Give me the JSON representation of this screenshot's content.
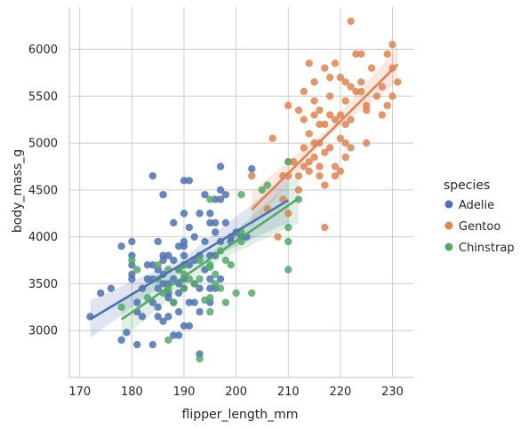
{
  "chart_data": {
    "type": "scatter",
    "xlabel": "flipper_length_mm",
    "ylabel": "body_mass_g",
    "xlim": [
      168,
      234
    ],
    "ylim": [
      2500,
      6450
    ],
    "xticks": [
      170,
      180,
      190,
      200,
      210,
      220,
      230
    ],
    "yticks": [
      3000,
      3500,
      4000,
      4500,
      5000,
      5500,
      6000
    ],
    "grid": true,
    "legend": {
      "title": "species",
      "placement": "right"
    },
    "series": [
      {
        "name": "Adelie",
        "color": "#4c72b0",
        "regression": {
          "x": [
            172,
            210
          ],
          "y": [
            3120,
            4390
          ],
          "ci": [
            [
              172,
              2920,
              3320
            ],
            [
              190,
              3650,
              3780
            ],
            [
              210,
              4150,
              4650
            ]
          ]
        },
        "points": [
          [
            172,
            3150
          ],
          [
            174,
            3400
          ],
          [
            176,
            3450
          ],
          [
            178,
            2900
          ],
          [
            178,
            3900
          ],
          [
            179,
            2980
          ],
          [
            180,
            3550
          ],
          [
            180,
            3950
          ],
          [
            180,
            3800
          ],
          [
            180,
            3700
          ],
          [
            180,
            3600
          ],
          [
            181,
            2850
          ],
          [
            181,
            3300
          ],
          [
            181,
            3200
          ],
          [
            182,
            3150
          ],
          [
            182,
            3450
          ],
          [
            183,
            3550
          ],
          [
            183,
            3700
          ],
          [
            184,
            2850
          ],
          [
            184,
            3550
          ],
          [
            184,
            3300
          ],
          [
            184,
            3700
          ],
          [
            185,
            3450
          ],
          [
            185,
            3950
          ],
          [
            185,
            3250
          ],
          [
            185,
            3150
          ],
          [
            185,
            3650
          ],
          [
            186,
            3750
          ],
          [
            186,
            3500
          ],
          [
            186,
            3100
          ],
          [
            186,
            4450
          ],
          [
            186,
            3800
          ],
          [
            187,
            3800
          ],
          [
            187,
            3350
          ],
          [
            187,
            3500
          ],
          [
            187,
            3400
          ],
          [
            187,
            3150
          ],
          [
            188,
            3300
          ],
          [
            188,
            3550
          ],
          [
            188,
            3750
          ],
          [
            188,
            2950
          ],
          [
            188,
            4150
          ],
          [
            189,
            3900
          ],
          [
            189,
            3500
          ],
          [
            189,
            3400
          ],
          [
            189,
            3200
          ],
          [
            189,
            2950
          ],
          [
            189,
            3650
          ],
          [
            190,
            4250
          ],
          [
            190,
            3900
          ],
          [
            190,
            3950
          ],
          [
            190,
            3700
          ],
          [
            190,
            3550
          ],
          [
            190,
            3050
          ],
          [
            190,
            3450
          ],
          [
            190,
            3800
          ],
          [
            190,
            4600
          ],
          [
            191,
            3050
          ],
          [
            191,
            3300
          ],
          [
            191,
            3700
          ],
          [
            191,
            4600
          ],
          [
            192,
            3500
          ],
          [
            192,
            3300
          ],
          [
            192,
            4000
          ],
          [
            192,
            3750
          ],
          [
            193,
            3800
          ],
          [
            193,
            3450
          ],
          [
            193,
            2750
          ],
          [
            193,
            3200
          ],
          [
            193,
            4250
          ],
          [
            194,
            3650
          ],
          [
            194,
            4450
          ],
          [
            194,
            3950
          ],
          [
            195,
            3800
          ],
          [
            195,
            3550
          ],
          [
            195,
            3300
          ],
          [
            195,
            4150
          ],
          [
            195,
            4250
          ],
          [
            195,
            3450
          ],
          [
            196,
            4400
          ],
          [
            196,
            3800
          ],
          [
            196,
            4050
          ],
          [
            196,
            3450
          ],
          [
            196,
            4150
          ],
          [
            197,
            4400
          ],
          [
            197,
            3950
          ],
          [
            197,
            3550
          ],
          [
            197,
            4750
          ],
          [
            197,
            4500
          ],
          [
            198,
            4150
          ],
          [
            198,
            4450
          ],
          [
            199,
            3950
          ],
          [
            199,
            4000
          ],
          [
            200,
            4050
          ],
          [
            201,
            4000
          ],
          [
            202,
            4000
          ],
          [
            203,
            4725
          ],
          [
            184,
            4650
          ],
          [
            186,
            3600
          ],
          [
            191,
            4100
          ]
        ]
      },
      {
        "name": "Gentoo",
        "color": "#dd8452",
        "regression": {
          "x": [
            203,
            231
          ],
          "y": [
            4290,
            5840
          ],
          "ci": [
            [
              203,
              4100,
              4480
            ],
            [
              217,
              5050,
              5130
            ],
            [
              231,
              5650,
              6030
            ]
          ]
        },
        "points": [
          [
            203,
            4650
          ],
          [
            206,
            4300
          ],
          [
            207,
            5050
          ],
          [
            208,
            4000
          ],
          [
            209,
            4400
          ],
          [
            209,
            4650
          ],
          [
            210,
            4800
          ],
          [
            210,
            5400
          ],
          [
            210,
            4650
          ],
          [
            210,
            4250
          ],
          [
            211,
            4800
          ],
          [
            212,
            5350
          ],
          [
            212,
            4650
          ],
          [
            212,
            4500
          ],
          [
            213,
            5550
          ],
          [
            213,
            4750
          ],
          [
            213,
            4950
          ],
          [
            213,
            5250
          ],
          [
            214,
            4800
          ],
          [
            214,
            4700
          ],
          [
            214,
            5850
          ],
          [
            214,
            5100
          ],
          [
            215,
            5000
          ],
          [
            215,
            4850
          ],
          [
            215,
            5450
          ],
          [
            215,
            5650
          ],
          [
            215,
            5300
          ],
          [
            216,
            5000
          ],
          [
            216,
            4750
          ],
          [
            216,
            5200
          ],
          [
            216,
            4650
          ],
          [
            216,
            5350
          ],
          [
            217,
            4900
          ],
          [
            217,
            5200
          ],
          [
            217,
            4550
          ],
          [
            217,
            5800
          ],
          [
            217,
            4100
          ],
          [
            218,
            5500
          ],
          [
            218,
            4950
          ],
          [
            218,
            5300
          ],
          [
            218,
            5700
          ],
          [
            219,
            4750
          ],
          [
            219,
            5850
          ],
          [
            219,
            5250
          ],
          [
            219,
            4650
          ],
          [
            220,
            5300
          ],
          [
            220,
            5700
          ],
          [
            220,
            4700
          ],
          [
            220,
            5050
          ],
          [
            221,
            5650
          ],
          [
            221,
            5200
          ],
          [
            221,
            5000
          ],
          [
            221,
            5450
          ],
          [
            222,
            6300
          ],
          [
            222,
            5250
          ],
          [
            222,
            4950
          ],
          [
            223,
            5550
          ],
          [
            223,
            5950
          ],
          [
            224,
            5550
          ],
          [
            224,
            5650
          ],
          [
            225,
            5350
          ],
          [
            225,
            5400
          ],
          [
            225,
            5000
          ],
          [
            226,
            5800
          ],
          [
            227,
            5500
          ],
          [
            228,
            5300
          ],
          [
            228,
            5600
          ],
          [
            229,
            5400
          ],
          [
            229,
            5950
          ],
          [
            230,
            5500
          ],
          [
            230,
            5800
          ],
          [
            230,
            6050
          ],
          [
            231,
            5650
          ],
          [
            222,
            5600
          ],
          [
            221,
            4850
          ],
          [
            224,
            5950
          ]
        ]
      },
      {
        "name": "Chinstrap",
        "color": "#55a868",
        "regression": {
          "x": [
            178,
            212
          ],
          "y": [
            3120,
            4410
          ],
          "ci": [
            [
              178,
              2920,
              3320
            ],
            [
              196,
              3730,
              3870
            ],
            [
              212,
              4150,
              4670
            ]
          ]
        },
        "points": [
          [
            178,
            3250
          ],
          [
            180,
            3750
          ],
          [
            181,
            3650
          ],
          [
            183,
            3350
          ],
          [
            185,
            3700
          ],
          [
            185,
            3550
          ],
          [
            186,
            3400
          ],
          [
            187,
            2900
          ],
          [
            187,
            3650
          ],
          [
            187,
            3450
          ],
          [
            188,
            3300
          ],
          [
            189,
            3650
          ],
          [
            190,
            3600
          ],
          [
            190,
            3450
          ],
          [
            190,
            3700
          ],
          [
            191,
            3550
          ],
          [
            192,
            3500
          ],
          [
            193,
            2700
          ],
          [
            193,
            3750
          ],
          [
            193,
            3550
          ],
          [
            194,
            3325
          ],
          [
            195,
            3200
          ],
          [
            195,
            3350
          ],
          [
            195,
            3700
          ],
          [
            195,
            3675
          ],
          [
            195,
            4400
          ],
          [
            196,
            3600
          ],
          [
            196,
            3500
          ],
          [
            197,
            3450
          ],
          [
            197,
            3850
          ],
          [
            198,
            3750
          ],
          [
            198,
            3300
          ],
          [
            199,
            3700
          ],
          [
            200,
            3400
          ],
          [
            201,
            4450
          ],
          [
            201,
            3950
          ],
          [
            201,
            4050
          ],
          [
            203,
            3400
          ],
          [
            205,
            4500
          ],
          [
            206,
            4550
          ],
          [
            210,
            3950
          ],
          [
            210,
            4800
          ],
          [
            210,
            4100
          ],
          [
            210,
            3650
          ],
          [
            212,
            4400
          ]
        ]
      }
    ]
  }
}
